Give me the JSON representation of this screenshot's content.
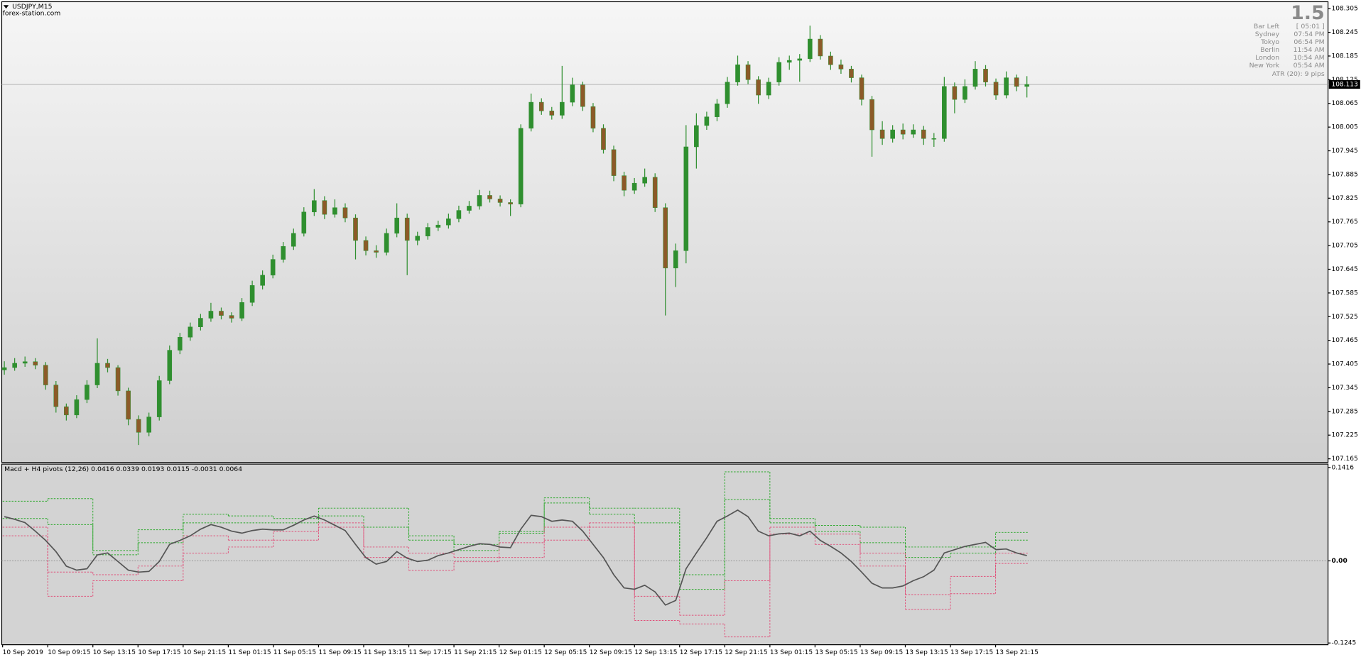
{
  "header": {
    "symbol": "USDJPY,M15",
    "site": "forex-station.com"
  },
  "info": {
    "big": "1.5",
    "rows": [
      [
        "Bar Left",
        "[ 05:01 ]"
      ],
      [
        "Sydney",
        "07:54 PM"
      ],
      [
        "Tokyo",
        "06:54 PM"
      ],
      [
        "Berlin",
        "11:54 AM"
      ],
      [
        "London",
        "10:54 AM"
      ],
      [
        "New York",
        "05:54 AM"
      ]
    ],
    "atr": "ATR (20): 9 pips"
  },
  "chart_data": [
    {
      "type": "candlestick",
      "up_color": "#2f8f2f",
      "down_color": "#8c5a28",
      "ylim": [
        107.156,
        108.3225
      ],
      "yticks": [
        108.305,
        108.245,
        108.185,
        108.125,
        108.065,
        108.005,
        107.945,
        107.885,
        107.825,
        107.765,
        107.705,
        107.645,
        107.585,
        107.525,
        107.465,
        107.405,
        107.345,
        107.285,
        107.225,
        107.165
      ],
      "current_price": 108.113,
      "time_labels": [
        "10 Sep 2019",
        "10 Sep 09:15",
        "10 Sep 13:15",
        "10 Sep 17:15",
        "10 Sep 21:15",
        "11 Sep 01:15",
        "11 Sep 05:15",
        "11 Sep 09:15",
        "11 Sep 13:15",
        "11 Sep 17:15",
        "11 Sep 21:15",
        "12 Sep 01:15",
        "12 Sep 05:15",
        "12 Sep 09:15",
        "12 Sep 13:15",
        "12 Sep 17:15",
        "12 Sep 21:15",
        "13 Sep 01:15",
        "13 Sep 05:15",
        "13 Sep 09:15",
        "13 Sep 13:15",
        "13 Sep 17:15",
        "13 Sep 21:15"
      ],
      "ohlc": [
        [
          107.39,
          107.412,
          107.378,
          107.396
        ],
        [
          107.396,
          107.42,
          107.388,
          107.407
        ],
        [
          107.407,
          107.424,
          107.398,
          107.411
        ],
        [
          107.411,
          107.42,
          107.392,
          107.402
        ],
        [
          107.402,
          107.41,
          107.34,
          107.352
        ],
        [
          107.352,
          107.362,
          107.282,
          107.297
        ],
        [
          107.297,
          107.305,
          107.262,
          107.276
        ],
        [
          107.276,
          107.326,
          107.268,
          107.315
        ],
        [
          107.315,
          107.364,
          107.306,
          107.352
        ],
        [
          107.352,
          107.47,
          107.344,
          107.407
        ],
        [
          107.407,
          107.418,
          107.384,
          107.396
        ],
        [
          107.396,
          107.402,
          107.325,
          107.337
        ],
        [
          107.337,
          107.345,
          107.25,
          107.265
        ],
        [
          107.265,
          107.275,
          107.2,
          107.232
        ],
        [
          107.232,
          107.282,
          107.222,
          107.271
        ],
        [
          107.271,
          107.375,
          107.262,
          107.363
        ],
        [
          107.363,
          107.452,
          107.354,
          107.44
        ],
        [
          107.44,
          107.484,
          107.43,
          107.473
        ],
        [
          107.473,
          107.51,
          107.464,
          107.499
        ],
        [
          107.499,
          107.532,
          107.49,
          107.521
        ],
        [
          107.521,
          107.56,
          107.512,
          107.539
        ],
        [
          107.539,
          107.548,
          107.518,
          107.528
        ],
        [
          107.528,
          107.536,
          107.51,
          107.521
        ],
        [
          107.521,
          107.572,
          107.514,
          107.561
        ],
        [
          107.561,
          107.616,
          107.552,
          107.604
        ],
        [
          107.604,
          107.642,
          107.594,
          107.63
        ],
        [
          107.63,
          107.682,
          107.622,
          107.67
        ],
        [
          107.67,
          107.714,
          107.662,
          107.703
        ],
        [
          107.703,
          107.748,
          107.694,
          107.736
        ],
        [
          107.736,
          107.802,
          107.728,
          107.79
        ],
        [
          107.79,
          107.848,
          107.78,
          107.819
        ],
        [
          107.819,
          107.83,
          107.772,
          107.784
        ],
        [
          107.784,
          107.822,
          107.776,
          107.801
        ],
        [
          107.801,
          107.812,
          107.764,
          107.775
        ],
        [
          107.775,
          107.784,
          107.67,
          107.718
        ],
        [
          107.718,
          107.728,
          107.68,
          107.692
        ],
        [
          107.692,
          107.706,
          107.674,
          107.688
        ],
        [
          107.688,
          107.748,
          107.68,
          107.736
        ],
        [
          107.736,
          107.812,
          107.726,
          107.775
        ],
        [
          107.775,
          107.786,
          107.63,
          107.718
        ],
        [
          107.718,
          107.74,
          107.706,
          107.729
        ],
        [
          107.729,
          107.762,
          107.72,
          107.751
        ],
        [
          107.751,
          107.768,
          107.742,
          107.757
        ],
        [
          107.757,
          107.786,
          107.748,
          107.773
        ],
        [
          107.773,
          107.806,
          107.764,
          107.794
        ],
        [
          107.794,
          107.818,
          107.786,
          107.805
        ],
        [
          107.805,
          107.846,
          107.796,
          107.832
        ],
        [
          107.832,
          107.844,
          107.814,
          107.823
        ],
        [
          107.823,
          107.832,
          107.804,
          107.814
        ],
        [
          107.814,
          107.822,
          107.78,
          107.81
        ],
        [
          107.81,
          108.012,
          107.802,
          108.002
        ],
        [
          108.002,
          108.09,
          107.994,
          108.068
        ],
        [
          108.068,
          108.078,
          108.036,
          108.046
        ],
        [
          108.046,
          108.056,
          108.024,
          108.035
        ],
        [
          108.035,
          108.16,
          108.026,
          108.068
        ],
        [
          108.068,
          108.13,
          108.058,
          108.112
        ],
        [
          108.112,
          108.12,
          108.046,
          108.057
        ],
        [
          108.057,
          108.066,
          107.992,
          108.002
        ],
        [
          108.002,
          108.012,
          107.938,
          107.948
        ],
        [
          107.948,
          107.958,
          107.868,
          107.882
        ],
        [
          107.882,
          107.892,
          107.83,
          107.845
        ],
        [
          107.845,
          107.876,
          107.836,
          107.863
        ],
        [
          107.863,
          107.9,
          107.854,
          107.878
        ],
        [
          107.878,
          107.888,
          107.79,
          107.801
        ],
        [
          107.801,
          107.812,
          107.528,
          107.648
        ],
        [
          107.648,
          107.71,
          107.6,
          107.692
        ],
        [
          107.692,
          108.01,
          107.66,
          107.955
        ],
        [
          107.955,
          108.04,
          107.9,
          108.009
        ],
        [
          108.009,
          108.044,
          107.998,
          108.031
        ],
        [
          108.031,
          108.076,
          108.02,
          108.064
        ],
        [
          108.064,
          108.132,
          108.054,
          108.119
        ],
        [
          108.119,
          108.186,
          108.11,
          108.163
        ],
        [
          108.163,
          108.172,
          108.114,
          108.125
        ],
        [
          108.125,
          108.134,
          108.064,
          108.086
        ],
        [
          108.086,
          108.13,
          108.076,
          108.119
        ],
        [
          108.119,
          108.182,
          108.11,
          108.169
        ],
        [
          108.169,
          108.186,
          108.15,
          108.174
        ],
        [
          108.174,
          108.19,
          108.12,
          108.178
        ],
        [
          108.178,
          108.262,
          108.17,
          108.228
        ],
        [
          108.228,
          108.238,
          108.176,
          108.185
        ],
        [
          108.185,
          108.196,
          108.15,
          108.163
        ],
        [
          108.163,
          108.176,
          108.14,
          108.152
        ],
        [
          108.152,
          108.16,
          108.118,
          108.13
        ],
        [
          108.13,
          108.138,
          108.06,
          108.075
        ],
        [
          108.075,
          108.084,
          107.93,
          107.998
        ],
        [
          107.998,
          108.02,
          107.96,
          107.976
        ],
        [
          107.976,
          108.01,
          107.966,
          107.998
        ],
        [
          107.998,
          108.014,
          107.974,
          107.987
        ],
        [
          107.987,
          108.012,
          107.978,
          107.998
        ],
        [
          107.998,
          108.008,
          107.96,
          107.976
        ],
        [
          107.976,
          107.99,
          107.955,
          107.976
        ],
        [
          107.976,
          108.132,
          107.968,
          108.108
        ],
        [
          108.108,
          108.118,
          108.04,
          108.075
        ],
        [
          108.075,
          108.126,
          108.066,
          108.108
        ],
        [
          108.108,
          108.172,
          108.1,
          108.152
        ],
        [
          108.152,
          108.162,
          108.108,
          108.119
        ],
        [
          108.119,
          108.128,
          108.074,
          108.086
        ],
        [
          108.086,
          108.146,
          108.078,
          108.13
        ],
        [
          108.13,
          108.138,
          108.096,
          108.108
        ],
        [
          108.108,
          108.134,
          108.08,
          108.113
        ]
      ]
    },
    {
      "type": "line",
      "title": "Macd + H4 pivots (12,26) 0.0416 0.0339 0.0193 0.0115 -0.0031 0.0064",
      "y2lim": [
        -0.1271,
        0.1467
      ],
      "y2ticks": [
        0.1416,
        {
          "value": 0,
          "label": "0.00"
        },
        -0.1245
      ],
      "macd": {
        "color": "#555555",
        "values": [
          0.067,
          0.063,
          0.058,
          0.045,
          0.031,
          0.014,
          -0.008,
          -0.014,
          -0.012,
          0.009,
          0.012,
          -0.001,
          -0.014,
          -0.017,
          -0.016,
          -0.001,
          0.025,
          0.031,
          0.038,
          0.048,
          0.055,
          0.051,
          0.045,
          0.042,
          0.046,
          0.048,
          0.047,
          0.047,
          0.054,
          0.062,
          0.068,
          0.062,
          0.054,
          0.046,
          0.025,
          0.005,
          -0.005,
          -0.001,
          0.014,
          0.004,
          -0.001,
          0.001,
          0.008,
          0.012,
          0.017,
          0.022,
          0.026,
          0.025,
          0.021,
          0.02,
          0.048,
          0.069,
          0.067,
          0.06,
          0.062,
          0.06,
          0.045,
          0.025,
          0.005,
          -0.021,
          -0.041,
          -0.043,
          -0.037,
          -0.047,
          -0.067,
          -0.06,
          -0.012,
          0.012,
          0.035,
          0.06,
          0.068,
          0.077,
          0.067,
          0.045,
          0.038,
          0.041,
          0.042,
          0.038,
          0.045,
          0.031,
          0.022,
          0.012,
          -0.001,
          -0.017,
          -0.034,
          -0.041,
          -0.041,
          -0.038,
          -0.03,
          -0.024,
          -0.014,
          0.012,
          0.017,
          0.022,
          0.025,
          0.028,
          0.017,
          0.018,
          0.012,
          0.008
        ]
      },
      "pivots": [
        {
          "color": "#2aa82a",
          "values": [
            0.0904,
            0.0943,
            0.0157,
            0.0472,
            0.0707,
            0.0681,
            0.0642,
            0.0799,
            0.0799,
            0.038,
            0.0249,
            0.0445,
            0.0956,
            0.0799,
            0.0799,
            -0.021,
            0.1349,
            0.0642,
            0.0537,
            0.0511,
            0.021,
            0.021,
            0.0432
          ]
        },
        {
          "color": "#2aa82a",
          "values": [
            0.0642,
            0.055,
            0.0092,
            0.0275,
            0.0576,
            0.0576,
            0.0576,
            0.0681,
            0.0511,
            0.0314,
            0.0157,
            0.0419,
            0.0878,
            0.0707,
            0.0576,
            -0.0432,
            0.093,
            0.0576,
            0.0445,
            0.0275,
            0.0052,
            0.0118,
            0.0314
          ]
        },
        {
          "color": "#e0507a",
          "values": [
            0.0511,
            -0.017,
            -0.021,
            -0.0079,
            0.038,
            0.0314,
            0.0445,
            0.0576,
            0.021,
            0.0118,
            0.0052,
            0.0275,
            0.0511,
            0.0576,
            -0.0537,
            -0.0825,
            -0.0301,
            0.0511,
            0.0406,
            0.0118,
            -0.0511,
            -0.0236,
            0.0118
          ]
        },
        {
          "color": "#e0507a",
          "values": [
            0.038,
            -0.0537,
            -0.0301,
            -0.0301,
            0.0118,
            0.021,
            0.0314,
            0.0511,
            0.0052,
            -0.0144,
            -0.0013,
            0.0052,
            0.0314,
            0.0511,
            -0.0904,
            -0.0956,
            -0.1153,
            0.0406,
            0.0249,
            -0.0079,
            -0.0734,
            -0.0498,
            -0.0039
          ]
        }
      ]
    }
  ]
}
